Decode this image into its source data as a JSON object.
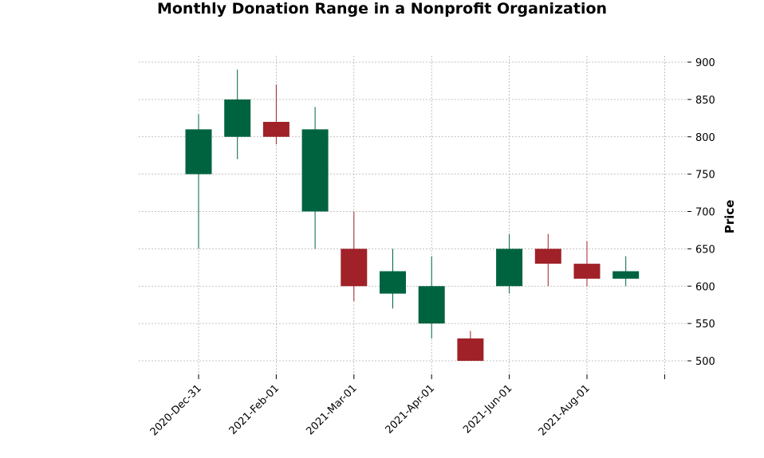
{
  "chart_data": {
    "type": "candlestick",
    "title": "Monthly Donation Range in a Nonprofit Organization",
    "xlabel": "",
    "ylabel": "Price",
    "ylim": [
      480,
      910
    ],
    "y_ticks": [
      500,
      550,
      600,
      650,
      700,
      750,
      800,
      850,
      900
    ],
    "x_tick_labels": [
      "2020-Dec-31",
      "2021-Feb-01",
      "2021-Mar-01",
      "2021-Apr-01",
      "2021-Jun-01",
      "2021-Aug-01",
      ""
    ],
    "grid": true,
    "colors": {
      "up": "#006340",
      "down": "#a02128",
      "grid": "#b0b0b0"
    },
    "candles": [
      {
        "date": "2020-12-31",
        "open": 750,
        "high": 830,
        "low": 650,
        "close": 810
      },
      {
        "date": "2021-01-31",
        "open": 800,
        "high": 890,
        "low": 770,
        "close": 850
      },
      {
        "date": "2021-02-28",
        "open": 820,
        "high": 870,
        "low": 790,
        "close": 800
      },
      {
        "date": "2021-03-31",
        "open": 700,
        "high": 840,
        "low": 650,
        "close": 810
      },
      {
        "date": "2021-04-30",
        "open": 650,
        "high": 700,
        "low": 580,
        "close": 600
      },
      {
        "date": "2021-05-31",
        "open": 590,
        "high": 650,
        "low": 570,
        "close": 620
      },
      {
        "date": "2021-06-30",
        "open": 550,
        "high": 640,
        "low": 530,
        "close": 600
      },
      {
        "date": "2021-07-31",
        "open": 530,
        "high": 540,
        "low": 500,
        "close": 500
      },
      {
        "date": "2021-08-31",
        "open": 600,
        "high": 670,
        "low": 590,
        "close": 650
      },
      {
        "date": "2021-09-30",
        "open": 650,
        "high": 670,
        "low": 600,
        "close": 630
      },
      {
        "date": "2021-10-31",
        "open": 630,
        "high": 660,
        "low": 600,
        "close": 610
      },
      {
        "date": "2021-11-30",
        "open": 610,
        "high": 640,
        "low": 600,
        "close": 620
      }
    ]
  }
}
